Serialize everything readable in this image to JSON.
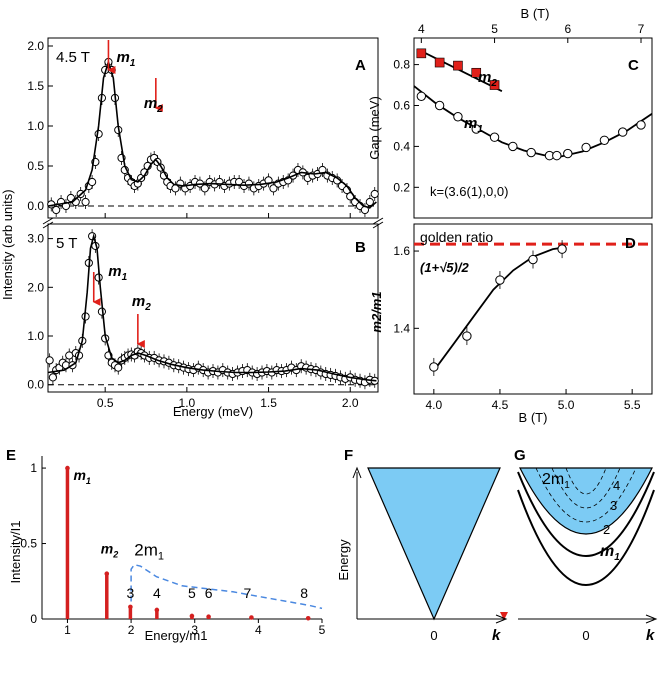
{
  "chart_data": [
    {
      "panel": "A",
      "type": "scatter",
      "annotation": "4.5 T",
      "xlabel": "Energy (meV)",
      "ylabel": "Intensity (arb units)",
      "xlim": [
        0.15,
        2.17
      ],
      "ylim": [
        -0.15,
        2.1
      ],
      "xticks": [
        "0.5",
        "1.0",
        "1.5",
        "2.0"
      ],
      "yticks": [
        "0.0",
        "0.5",
        "1.0",
        "1.5",
        "2.0"
      ],
      "peak_labels": [
        {
          "text": "m",
          "sub": "1",
          "x": 0.52
        },
        {
          "text": "m",
          "sub": "2",
          "x": 0.81
        }
      ],
      "arrows_x": [
        0.52,
        0.81
      ],
      "baseline": 0,
      "points": {
        "x": [
          0.17,
          0.2,
          0.23,
          0.26,
          0.29,
          0.32,
          0.35,
          0.38,
          0.4,
          0.42,
          0.44,
          0.46,
          0.48,
          0.5,
          0.52,
          0.54,
          0.56,
          0.58,
          0.6,
          0.62,
          0.64,
          0.66,
          0.68,
          0.7,
          0.72,
          0.74,
          0.76,
          0.78,
          0.8,
          0.82,
          0.84,
          0.86,
          0.88,
          0.9,
          0.93,
          0.96,
          0.99,
          1.02,
          1.05,
          1.08,
          1.11,
          1.14,
          1.17,
          1.2,
          1.23,
          1.26,
          1.29,
          1.32,
          1.35,
          1.38,
          1.41,
          1.44,
          1.47,
          1.5,
          1.53,
          1.56,
          1.59,
          1.62,
          1.65,
          1.68,
          1.71,
          1.74,
          1.77,
          1.8,
          1.83,
          1.86,
          1.89,
          1.92,
          1.95,
          1.98,
          2.0,
          2.03,
          2.06,
          2.09,
          2.12,
          2.15
        ],
        "y": [
          0.02,
          -0.05,
          0.05,
          0.0,
          0.1,
          0.05,
          0.15,
          0.05,
          0.25,
          0.3,
          0.55,
          0.9,
          1.35,
          1.7,
          1.8,
          1.7,
          1.35,
          0.95,
          0.6,
          0.45,
          0.35,
          0.3,
          0.25,
          0.28,
          0.35,
          0.42,
          0.5,
          0.58,
          0.6,
          0.55,
          0.48,
          0.38,
          0.3,
          0.25,
          0.22,
          0.28,
          0.22,
          0.25,
          0.3,
          0.28,
          0.22,
          0.3,
          0.27,
          0.3,
          0.25,
          0.28,
          0.3,
          0.3,
          0.25,
          0.28,
          0.22,
          0.25,
          0.28,
          0.32,
          0.22,
          0.28,
          0.3,
          0.32,
          0.38,
          0.45,
          0.42,
          0.35,
          0.38,
          0.4,
          0.45,
          0.38,
          0.35,
          0.32,
          0.25,
          0.2,
          0.12,
          0.05,
          0.0,
          -0.05,
          0.05,
          0.15
        ]
      },
      "fit": {
        "x": [
          0.15,
          0.3,
          0.38,
          0.42,
          0.46,
          0.49,
          0.52,
          0.55,
          0.58,
          0.62,
          0.66,
          0.7,
          0.74,
          0.78,
          0.81,
          0.84,
          0.88,
          0.92,
          0.98,
          1.05,
          1.15,
          1.25,
          1.35,
          1.45,
          1.55,
          1.62,
          1.7,
          1.78,
          1.85,
          1.92,
          1.98,
          2.03,
          2.08,
          2.12,
          2.16
        ],
        "y": [
          0.0,
          0.05,
          0.2,
          0.45,
          1.0,
          1.6,
          1.8,
          1.6,
          1.0,
          0.5,
          0.33,
          0.3,
          0.38,
          0.52,
          0.58,
          0.5,
          0.35,
          0.27,
          0.25,
          0.27,
          0.28,
          0.27,
          0.26,
          0.27,
          0.3,
          0.35,
          0.42,
          0.4,
          0.42,
          0.35,
          0.25,
          0.1,
          0.0,
          -0.02,
          0.05
        ]
      }
    },
    {
      "panel": "B",
      "type": "scatter",
      "annotation": "5 T",
      "xlabel": "Energy (meV)",
      "xlim": [
        0.15,
        2.17
      ],
      "ylim": [
        -0.15,
        3.3
      ],
      "xticks": [
        "0.5",
        "1.0",
        "1.5",
        "2.0"
      ],
      "yticks": [
        "0.0",
        "1.0",
        "2.0",
        "3.0"
      ],
      "peak_labels": [
        {
          "text": "m",
          "sub": "1",
          "x": 0.47
        },
        {
          "text": "m",
          "sub": "2",
          "x": 0.7
        }
      ],
      "arrows_x": [
        0.43,
        0.7
      ],
      "baseline": 0,
      "points": {
        "x": [
          0.16,
          0.18,
          0.2,
          0.22,
          0.24,
          0.26,
          0.28,
          0.3,
          0.32,
          0.34,
          0.36,
          0.38,
          0.4,
          0.42,
          0.44,
          0.46,
          0.48,
          0.5,
          0.52,
          0.54,
          0.56,
          0.58,
          0.6,
          0.62,
          0.64,
          0.66,
          0.68,
          0.7,
          0.72,
          0.74,
          0.77,
          0.8,
          0.83,
          0.86,
          0.89,
          0.92,
          0.95,
          0.98,
          1.01,
          1.04,
          1.07,
          1.1,
          1.13,
          1.16,
          1.19,
          1.22,
          1.25,
          1.28,
          1.31,
          1.34,
          1.37,
          1.4,
          1.43,
          1.46,
          1.49,
          1.52,
          1.55,
          1.58,
          1.61,
          1.64,
          1.67,
          1.7,
          1.73,
          1.76,
          1.79,
          1.82,
          1.85,
          1.88,
          1.91,
          1.94,
          1.97,
          2.0,
          2.03,
          2.06,
          2.09,
          2.12,
          2.15
        ],
        "y": [
          0.5,
          0.15,
          0.3,
          0.35,
          0.45,
          0.4,
          0.6,
          0.4,
          0.65,
          0.6,
          0.9,
          1.4,
          2.5,
          3.05,
          2.85,
          2.2,
          1.5,
          0.95,
          0.6,
          0.45,
          0.4,
          0.35,
          0.5,
          0.55,
          0.6,
          0.62,
          0.6,
          0.68,
          0.65,
          0.6,
          0.55,
          0.55,
          0.5,
          0.48,
          0.45,
          0.4,
          0.38,
          0.35,
          0.32,
          0.3,
          0.35,
          0.3,
          0.25,
          0.28,
          0.25,
          0.3,
          0.25,
          0.22,
          0.25,
          0.28,
          0.3,
          0.25,
          0.22,
          0.25,
          0.28,
          0.25,
          0.3,
          0.28,
          0.3,
          0.35,
          0.3,
          0.38,
          0.35,
          0.32,
          0.3,
          0.25,
          0.22,
          0.2,
          0.18,
          0.15,
          0.12,
          0.15,
          0.1,
          0.08,
          0.05,
          0.1,
          0.08
        ]
      },
      "fit": {
        "x": [
          0.15,
          0.25,
          0.32,
          0.36,
          0.39,
          0.41,
          0.43,
          0.45,
          0.47,
          0.5,
          0.54,
          0.58,
          0.62,
          0.66,
          0.7,
          0.75,
          0.82,
          0.9,
          1.0,
          1.1,
          1.2,
          1.3,
          1.4,
          1.5,
          1.6,
          1.7,
          1.8,
          1.9,
          2.0,
          2.1,
          2.16
        ],
        "y": [
          0.25,
          0.3,
          0.45,
          0.9,
          1.9,
          2.8,
          3.05,
          2.8,
          2.0,
          1.0,
          0.55,
          0.45,
          0.5,
          0.6,
          0.65,
          0.6,
          0.5,
          0.42,
          0.35,
          0.3,
          0.27,
          0.25,
          0.25,
          0.26,
          0.28,
          0.33,
          0.3,
          0.22,
          0.15,
          0.1,
          0.08
        ]
      }
    },
    {
      "panel": "C",
      "type": "scatter",
      "xlabel": "B (T)",
      "ylabel": "Gap (meV)",
      "xlim": [
        3.9,
        7.15
      ],
      "ylim": [
        0.05,
        0.93
      ],
      "xticks": [
        "4",
        "5",
        "6",
        "7"
      ],
      "yticks": [
        "0.2",
        "0.4",
        "0.6",
        "0.8"
      ],
      "annotation": "k=(3.6(1),0,0)",
      "series": [
        {
          "name": "m2",
          "label": "m",
          "sub": "2",
          "marker": "filled-square",
          "x": [
            4.0,
            4.25,
            4.5,
            4.75,
            5.0
          ],
          "y": [
            0.855,
            0.81,
            0.795,
            0.76,
            0.7
          ],
          "fit_x": [
            3.95,
            5.1
          ],
          "fit_y": [
            0.875,
            0.67
          ]
        },
        {
          "name": "m1",
          "label": "m",
          "sub": "1",
          "marker": "open-circle",
          "x": [
            4.0,
            4.25,
            4.5,
            4.75,
            5.0,
            5.25,
            5.5,
            5.75,
            5.85,
            6.0,
            6.25,
            6.5,
            6.75,
            7.0
          ],
          "y": [
            0.645,
            0.6,
            0.545,
            0.485,
            0.445,
            0.4,
            0.37,
            0.355,
            0.355,
            0.365,
            0.395,
            0.43,
            0.47,
            0.505
          ],
          "fit_x": [
            3.9,
            4.2,
            4.5,
            4.8,
            5.1,
            5.4,
            5.7,
            5.9,
            6.2,
            6.5,
            6.8,
            7.15
          ],
          "fit_y": [
            0.695,
            0.61,
            0.54,
            0.48,
            0.42,
            0.38,
            0.355,
            0.35,
            0.375,
            0.42,
            0.475,
            0.56
          ]
        }
      ]
    },
    {
      "panel": "D",
      "type": "scatter",
      "xlabel": "B (T)",
      "ylabel": "m2/m1",
      "xlim": [
        3.85,
        5.65
      ],
      "ylim": [
        1.23,
        1.67
      ],
      "xticks": [
        "4.0",
        "4.5",
        "5.0",
        "5.5"
      ],
      "yticks": [
        "1.4",
        "1.6"
      ],
      "reference_line": {
        "value": 1.618,
        "label": "golden ratio",
        "formula": "(1+√5)/2"
      },
      "points": {
        "x": [
          4.0,
          4.25,
          4.5,
          4.75,
          4.97
        ],
        "y": [
          1.3,
          1.38,
          1.525,
          1.578,
          1.605
        ]
      },
      "fit": {
        "x": [
          4.0,
          4.15,
          4.3,
          4.45,
          4.6,
          4.75,
          4.9,
          5.0
        ],
        "y": [
          1.29,
          1.36,
          1.43,
          1.5,
          1.55,
          1.585,
          1.605,
          1.61
        ]
      }
    },
    {
      "panel": "E",
      "type": "bar",
      "xlabel": "Energy/m1",
      "ylabel": "Intensity/I1",
      "xlim": [
        0.6,
        5.0
      ],
      "ylim": [
        0,
        1.08
      ],
      "xticks": [
        "1",
        "2",
        "3",
        "4",
        "5"
      ],
      "yticks": [
        "0",
        "0.5",
        "1"
      ],
      "continuum_label": {
        "text": "2m",
        "sub": "1"
      },
      "bars": [
        {
          "label": "m",
          "sub": "1",
          "x": 1.0,
          "y": 1.0
        },
        {
          "label": "m",
          "sub": "2",
          "x": 1.618,
          "y": 0.3
        },
        {
          "label": "3",
          "x": 1.989,
          "y": 0.08
        },
        {
          "label": "4",
          "x": 2.405,
          "y": 0.06
        },
        {
          "label": "5",
          "x": 2.956,
          "y": 0.02
        },
        {
          "label": "6",
          "x": 3.218,
          "y": 0.015
        },
        {
          "label": "7",
          "x": 3.891,
          "y": 0.01
        },
        {
          "label": "8",
          "x": 4.783,
          "y": 0.005
        }
      ],
      "continuum": {
        "x": [
          2.0,
          2.0,
          2.05,
          2.15,
          2.4,
          2.8,
          3.2,
          3.6,
          4.0,
          4.4,
          4.8,
          5.0
        ],
        "y": [
          0.05,
          0.33,
          0.36,
          0.35,
          0.28,
          0.22,
          0.2,
          0.18,
          0.15,
          0.12,
          0.09,
          0.07
        ]
      }
    },
    {
      "panel": "F",
      "type": "diagram",
      "xlabel": "k",
      "ylabel": "Energy",
      "tick": "0",
      "fill_color": "#7ccbf4"
    },
    {
      "panel": "G",
      "type": "diagram",
      "xlabel": "k",
      "tick": "0",
      "fill_color": "#7ccbf4",
      "labels": [
        {
          "text": "2m",
          "sub": "1"
        },
        {
          "text": "4"
        },
        {
          "text": "3"
        },
        {
          "text": "2"
        },
        {
          "text": "m",
          "sub": "1"
        }
      ]
    }
  ],
  "panel_letters": [
    "A",
    "B",
    "C",
    "D",
    "E",
    "F",
    "G"
  ],
  "colors": {
    "arrow": "#e0201a",
    "square": "#e0201a",
    "golden_line": "#e0201a",
    "bar": "#d42020",
    "continuum": "#4a88e0",
    "fill": "#7ccbf4"
  }
}
